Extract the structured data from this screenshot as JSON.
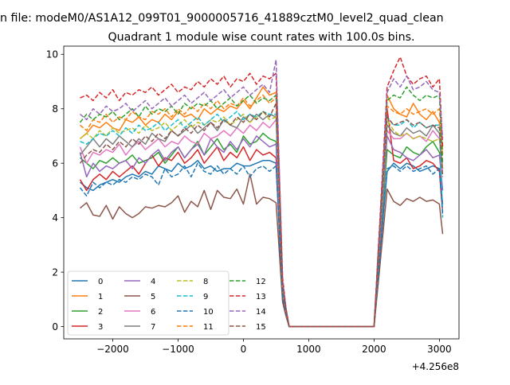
{
  "figure": {
    "suptitle": "n file: modeM0/AS1A12_099T01_9000005716_41889cztM0_level2_quad_clean",
    "title": "Quadrant 1 module wise count rates with 100.0s bins."
  },
  "chart_data": {
    "type": "line",
    "title": "Quadrant 1 module wise count rates with 100.0s bins.",
    "xlabel": "",
    "ylabel": "",
    "x_offset_label": "+4.256e8",
    "xlim": [
      -2750,
      3300
    ],
    "ylim": [
      -0.45,
      10.3
    ],
    "x_ticks": [
      -2000,
      -1000,
      0,
      1000,
      2000,
      3000
    ],
    "x_tick_labels": [
      "−2000",
      "−1000",
      "0",
      "1000",
      "2000",
      "3000"
    ],
    "y_ticks": [
      0,
      2,
      4,
      6,
      8,
      10
    ],
    "y_tick_labels": [
      "0",
      "2",
      "4",
      "6",
      "8",
      "10"
    ],
    "grid": false,
    "legend": {
      "placement": "lower-left",
      "columns": 4
    },
    "x": [
      -2500,
      -2400,
      -2300,
      -2200,
      -2100,
      -2000,
      -1900,
      -1800,
      -1700,
      -1600,
      -1500,
      -1400,
      -1300,
      -1200,
      -1100,
      -1000,
      -900,
      -800,
      -700,
      -600,
      -500,
      -400,
      -300,
      -200,
      -100,
      0,
      100,
      200,
      300,
      400,
      500,
      600,
      650,
      700,
      800,
      900,
      1000,
      1100,
      1200,
      1300,
      1400,
      1500,
      1600,
      1700,
      1800,
      1900,
      2000,
      2100,
      2200,
      2300,
      2400,
      2500,
      2600,
      2700,
      2800,
      2900,
      3000,
      3050
    ],
    "series": [
      {
        "name": "0",
        "color": "#1f77b4",
        "dash": "solid",
        "values": [
          5.3,
          5.1,
          5.0,
          5.2,
          5.3,
          5.4,
          5.3,
          5.5,
          5.6,
          5.5,
          5.7,
          5.6,
          5.9,
          5.8,
          5.7,
          6.0,
          5.8,
          5.9,
          6.1,
          5.8,
          5.9,
          5.7,
          5.8,
          5.8,
          6.0,
          5.9,
          5.9,
          6.0,
          6.1,
          6.1,
          6.0,
          1.0,
          0.5,
          0.0,
          0.0,
          0.0,
          0.0,
          0.0,
          0.0,
          0.0,
          0.0,
          0.0,
          0.0,
          0.0,
          0.0,
          0.0,
          0.0,
          3.0,
          5.7,
          6.0,
          5.8,
          6.0,
          5.9,
          5.7,
          5.8,
          5.9,
          5.8,
          4.5
        ]
      },
      {
        "name": "1",
        "color": "#ff7f0e",
        "dash": "solid",
        "values": [
          6.9,
          7.1,
          7.4,
          7.3,
          7.5,
          7.3,
          7.2,
          7.6,
          7.5,
          7.7,
          7.4,
          7.6,
          7.5,
          7.8,
          7.6,
          7.9,
          7.7,
          7.8,
          7.6,
          8.0,
          7.8,
          8.0,
          7.9,
          8.1,
          8.0,
          8.3,
          8.0,
          8.4,
          8.8,
          8.5,
          8.6,
          1.5,
          0.6,
          0.0,
          0.0,
          0.0,
          0.0,
          0.0,
          0.0,
          0.0,
          0.0,
          0.0,
          0.0,
          0.0,
          0.0,
          0.0,
          0.0,
          4.2,
          8.5,
          8.0,
          7.8,
          7.7,
          8.2,
          7.8,
          7.6,
          7.9,
          7.5,
          6.5
        ]
      },
      {
        "name": "2",
        "color": "#2ca02c",
        "dash": "solid",
        "values": [
          6.2,
          6.0,
          5.8,
          6.1,
          6.0,
          6.2,
          6.0,
          6.1,
          6.3,
          6.0,
          6.1,
          6.2,
          6.4,
          6.0,
          6.3,
          6.6,
          6.2,
          6.5,
          6.8,
          6.3,
          6.6,
          6.9,
          6.5,
          6.7,
          6.4,
          7.0,
          6.7,
          6.8,
          7.1,
          6.9,
          6.8,
          1.2,
          0.5,
          0.0,
          0.0,
          0.0,
          0.0,
          0.0,
          0.0,
          0.0,
          0.0,
          0.0,
          0.0,
          0.0,
          0.0,
          0.0,
          0.0,
          3.3,
          6.5,
          6.3,
          6.2,
          6.6,
          6.4,
          6.3,
          6.6,
          6.8,
          6.4,
          5.8
        ]
      },
      {
        "name": "3",
        "color": "#d62728",
        "dash": "solid",
        "values": [
          5.4,
          5.0,
          5.4,
          5.6,
          5.4,
          5.7,
          5.5,
          5.7,
          5.9,
          5.6,
          6.0,
          6.3,
          5.9,
          6.2,
          6.1,
          6.4,
          6.0,
          6.2,
          6.5,
          6.0,
          6.3,
          6.6,
          6.1,
          6.4,
          6.2,
          6.6,
          6.1,
          6.5,
          6.3,
          6.4,
          6.2,
          1.2,
          0.5,
          0.0,
          0.0,
          0.0,
          0.0,
          0.0,
          0.0,
          0.0,
          0.0,
          0.0,
          0.0,
          0.0,
          0.0,
          0.0,
          0.0,
          3.2,
          8.0,
          6.1,
          6.0,
          6.2,
          5.8,
          5.9,
          6.1,
          6.0,
          5.7,
          4.2
        ]
      },
      {
        "name": "4",
        "color": "#9467bd",
        "dash": "solid",
        "values": [
          6.4,
          5.5,
          6.0,
          5.7,
          5.9,
          5.8,
          6.0,
          6.1,
          5.8,
          6.2,
          6.0,
          6.3,
          6.5,
          6.1,
          6.4,
          6.6,
          6.2,
          6.5,
          6.7,
          6.3,
          6.9,
          6.6,
          6.4,
          6.8,
          6.5,
          6.9,
          6.6,
          7.0,
          6.8,
          6.6,
          6.7,
          1.2,
          0.5,
          0.0,
          0.0,
          0.0,
          0.0,
          0.0,
          0.0,
          0.0,
          0.0,
          0.0,
          0.0,
          0.0,
          0.0,
          0.0,
          0.0,
          3.4,
          7.0,
          6.5,
          6.4,
          6.2,
          6.1,
          6.3,
          6.5,
          6.2,
          6.3,
          5.0
        ]
      },
      {
        "name": "5",
        "color": "#8c564b",
        "dash": "solid",
        "values": [
          4.35,
          4.55,
          4.1,
          4.05,
          4.45,
          3.95,
          4.4,
          4.15,
          4.0,
          4.15,
          4.4,
          4.35,
          4.45,
          4.4,
          4.55,
          4.8,
          4.2,
          4.6,
          4.4,
          5.0,
          4.3,
          5.0,
          4.75,
          4.7,
          5.05,
          4.5,
          5.6,
          4.5,
          4.75,
          4.7,
          4.55,
          0.9,
          0.4,
          0.0,
          0.0,
          0.0,
          0.0,
          0.0,
          0.0,
          0.0,
          0.0,
          0.0,
          0.0,
          0.0,
          0.0,
          0.0,
          0.0,
          2.5,
          5.05,
          4.6,
          4.45,
          4.7,
          4.6,
          4.75,
          4.6,
          4.65,
          4.5,
          3.4
        ]
      },
      {
        "name": "6",
        "color": "#e377c2",
        "dash": "solid",
        "values": [
          6.6,
          6.0,
          6.4,
          6.3,
          6.5,
          6.4,
          6.7,
          6.3,
          6.6,
          6.8,
          6.5,
          6.7,
          6.9,
          6.6,
          6.8,
          6.7,
          7.0,
          6.8,
          6.7,
          7.1,
          6.9,
          7.0,
          7.2,
          7.0,
          7.3,
          7.1,
          7.4,
          7.2,
          7.5,
          7.3,
          7.6,
          1.4,
          0.6,
          0.0,
          0.0,
          0.0,
          0.0,
          0.0,
          0.0,
          0.0,
          0.0,
          0.0,
          0.0,
          0.0,
          0.0,
          0.0,
          0.0,
          3.6,
          7.2,
          6.9,
          6.9,
          7.1,
          6.9,
          7.0,
          6.8,
          7.2,
          6.9,
          5.6
        ]
      },
      {
        "name": "7",
        "color": "#7f7f7f",
        "dash": "solid",
        "values": [
          6.3,
          6.6,
          6.9,
          6.6,
          6.9,
          6.7,
          7.0,
          6.8,
          6.6,
          6.9,
          6.7,
          7.1,
          6.9,
          6.8,
          7.2,
          7.0,
          7.2,
          7.4,
          7.1,
          7.3,
          7.5,
          7.2,
          7.6,
          7.4,
          7.3,
          7.7,
          7.5,
          7.8,
          7.6,
          7.8,
          7.7,
          1.4,
          0.6,
          0.0,
          0.0,
          0.0,
          0.0,
          0.0,
          0.0,
          0.0,
          0.0,
          0.0,
          0.0,
          0.0,
          0.0,
          0.0,
          0.0,
          3.6,
          7.4,
          7.1,
          7.0,
          7.3,
          7.1,
          7.2,
          7.0,
          7.4,
          7.1,
          5.8
        ]
      },
      {
        "name": "8",
        "color": "#bcbd22",
        "dash": "dashed",
        "values": [
          6.9,
          7.1,
          6.9,
          7.2,
          7.0,
          7.3,
          7.1,
          7.2,
          7.3,
          7.1,
          7.4,
          7.2,
          7.3,
          7.5,
          7.2,
          7.4,
          7.6,
          7.3,
          7.5,
          7.4,
          7.6,
          7.5,
          7.7,
          7.4,
          7.6,
          7.8,
          7.5,
          7.7,
          7.9,
          7.6,
          7.7,
          1.4,
          0.6,
          0.0,
          0.0,
          0.0,
          0.0,
          0.0,
          0.0,
          0.0,
          0.0,
          0.0,
          0.0,
          0.0,
          0.0,
          0.0,
          0.0,
          3.8,
          7.6,
          7.2,
          7.0,
          7.1,
          6.9,
          7.0,
          6.9,
          6.8,
          6.9,
          5.8
        ]
      },
      {
        "name": "9",
        "color": "#17becf",
        "dash": "dashed",
        "values": [
          6.8,
          6.7,
          6.9,
          7.1,
          7.0,
          7.2,
          7.0,
          7.3,
          7.1,
          7.4,
          7.2,
          7.3,
          7.5,
          7.2,
          7.4,
          7.6,
          7.3,
          7.5,
          7.7,
          7.4,
          7.6,
          7.8,
          7.5,
          7.7,
          7.9,
          7.6,
          7.8,
          7.7,
          7.9,
          7.8,
          7.8,
          1.5,
          0.6,
          0.0,
          0.0,
          0.0,
          0.0,
          0.0,
          0.0,
          0.0,
          0.0,
          0.0,
          0.0,
          0.0,
          0.0,
          0.0,
          0.0,
          3.8,
          7.7,
          7.4,
          7.4,
          7.6,
          7.3,
          7.5,
          7.3,
          7.4,
          7.4,
          4.0
        ]
      },
      {
        "name": "10",
        "color": "#1f77b4",
        "dash": "dashed",
        "values": [
          5.1,
          4.8,
          5.3,
          5.1,
          5.3,
          5.2,
          5.4,
          5.3,
          5.5,
          5.4,
          5.6,
          5.5,
          5.2,
          5.8,
          5.5,
          5.6,
          5.9,
          5.5,
          6.0,
          5.7,
          5.6,
          5.9,
          5.6,
          5.8,
          5.6,
          5.9,
          5.5,
          5.8,
          5.9,
          5.7,
          5.9,
          1.1,
          0.5,
          0.0,
          0.0,
          0.0,
          0.0,
          0.0,
          0.0,
          0.0,
          0.0,
          0.0,
          0.0,
          0.0,
          0.0,
          0.0,
          0.0,
          2.9,
          5.8,
          5.9,
          5.7,
          5.9,
          5.7,
          5.8,
          5.9,
          5.6,
          5.8,
          4.1
        ]
      },
      {
        "name": "11",
        "color": "#ff7f0e",
        "dash": "dashed",
        "values": [
          7.4,
          7.2,
          7.6,
          7.5,
          7.8,
          7.5,
          7.7,
          7.6,
          7.9,
          7.7,
          7.6,
          7.9,
          7.8,
          8.0,
          7.7,
          8.0,
          7.8,
          8.1,
          7.9,
          8.2,
          8.0,
          8.3,
          8.0,
          8.2,
          8.1,
          8.4,
          8.1,
          8.3,
          8.5,
          8.2,
          8.4,
          1.6,
          0.7,
          0.0,
          0.0,
          0.0,
          0.0,
          0.0,
          0.0,
          0.0,
          0.0,
          0.0,
          0.0,
          0.0,
          0.0,
          0.0,
          0.0,
          4.1,
          8.1,
          7.9,
          7.8,
          8.0,
          7.8,
          7.9,
          8.0,
          7.8,
          8.0,
          6.3
        ]
      },
      {
        "name": "12",
        "color": "#2ca02c",
        "dash": "dashed",
        "values": [
          7.5,
          7.8,
          7.6,
          7.8,
          7.7,
          7.9,
          7.6,
          7.8,
          8.0,
          7.7,
          8.1,
          7.8,
          8.0,
          7.9,
          8.1,
          7.8,
          8.2,
          8.0,
          8.2,
          8.1,
          8.3,
          8.0,
          8.2,
          8.4,
          8.1,
          8.3,
          8.5,
          8.2,
          8.4,
          8.3,
          8.5,
          1.6,
          0.7,
          0.0,
          0.0,
          0.0,
          0.0,
          0.0,
          0.0,
          0.0,
          0.0,
          0.0,
          0.0,
          0.0,
          0.0,
          0.0,
          0.0,
          4.2,
          8.3,
          8.5,
          8.4,
          8.8,
          8.5,
          8.3,
          8.5,
          8.4,
          8.5,
          6.0
        ]
      },
      {
        "name": "13",
        "color": "#d62728",
        "dash": "dashed",
        "values": [
          8.4,
          8.5,
          8.3,
          8.6,
          8.4,
          8.7,
          8.3,
          8.6,
          8.5,
          8.7,
          8.6,
          8.8,
          8.5,
          8.7,
          8.9,
          8.6,
          8.8,
          8.7,
          9.0,
          8.8,
          9.1,
          8.9,
          9.2,
          8.8,
          9.1,
          9.0,
          9.3,
          8.9,
          9.2,
          9.1,
          9.3,
          1.8,
          0.7,
          0.0,
          0.0,
          0.0,
          0.0,
          0.0,
          0.0,
          0.0,
          0.0,
          0.0,
          0.0,
          0.0,
          0.0,
          0.0,
          0.0,
          4.4,
          8.8,
          9.4,
          9.9,
          9.2,
          8.9,
          9.1,
          9.2,
          8.8,
          9.1,
          6.6
        ]
      },
      {
        "name": "14",
        "color": "#9467bd",
        "dash": "dashed",
        "values": [
          7.8,
          7.6,
          8.0,
          7.8,
          8.1,
          7.9,
          8.0,
          8.2,
          7.9,
          8.1,
          8.3,
          8.0,
          8.2,
          8.4,
          8.1,
          8.3,
          8.5,
          8.2,
          8.4,
          8.6,
          8.3,
          8.5,
          8.7,
          8.4,
          8.6,
          8.8,
          8.5,
          8.7,
          8.9,
          8.6,
          9.8,
          1.7,
          0.7,
          0.0,
          0.0,
          0.0,
          0.0,
          0.0,
          0.0,
          0.0,
          0.0,
          0.0,
          0.0,
          0.0,
          0.0,
          0.0,
          0.0,
          4.3,
          8.6,
          9.1,
          8.8,
          9.2,
          8.7,
          8.8,
          9.0,
          8.7,
          8.6,
          6.9
        ]
      },
      {
        "name": "15",
        "color": "#8c564b",
        "dash": "dashed",
        "values": [
          6.0,
          6.3,
          6.5,
          6.4,
          6.7,
          6.5,
          6.8,
          6.6,
          6.9,
          6.7,
          7.0,
          6.8,
          7.1,
          6.9,
          7.2,
          7.0,
          7.3,
          7.1,
          7.4,
          7.2,
          7.5,
          7.3,
          7.6,
          7.4,
          7.7,
          7.5,
          7.8,
          7.6,
          7.9,
          7.7,
          8.2,
          1.5,
          0.6,
          0.0,
          0.0,
          0.0,
          0.0,
          0.0,
          0.0,
          0.0,
          0.0,
          0.0,
          0.0,
          0.0,
          0.0,
          0.0,
          0.0,
          3.9,
          7.7,
          7.4,
          7.5,
          7.6,
          7.4,
          7.5,
          7.3,
          7.4,
          7.3,
          5.5
        ]
      }
    ]
  }
}
